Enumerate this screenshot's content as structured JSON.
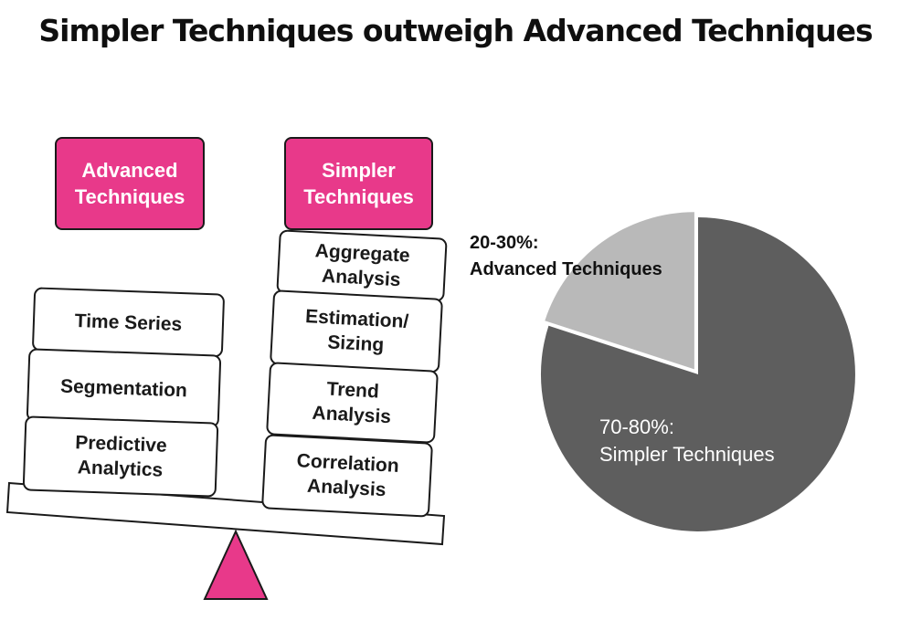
{
  "title": "Simpler Techniques outweigh Advanced Techniques",
  "scale": {
    "left_header": [
      "Advanced",
      "Techniques"
    ],
    "right_header": [
      "Simpler",
      "Techniques"
    ],
    "left_items": [
      "Time Series",
      "Segmentation",
      "Predictive\nAnalytics"
    ],
    "right_items": [
      "Aggregate\nAnalysis",
      "Estimation/\nSizing",
      "Trend\nAnalysis",
      "Correlation\nAnalysis"
    ]
  },
  "pie": {
    "advanced_label": [
      "20-30%:",
      "Advanced Techniques"
    ],
    "simpler_label": [
      "70-80%:",
      "Simpler Techniques"
    ]
  },
  "chart_data": {
    "type": "pie",
    "categories": [
      "Advanced Techniques",
      "Simpler Techniques"
    ],
    "values": [
      20,
      80
    ],
    "labels": [
      "20-30%: Advanced Techniques",
      "70-80%: Simpler Techniques"
    ],
    "colors": [
      "#b9b9b9",
      "#5e5e5e"
    ],
    "exploded": "Advanced Techniques"
  },
  "colors": {
    "accent_pink": "#e8398a",
    "pie_dark": "#5e5e5e",
    "pie_light": "#b9b9b9",
    "outline": "#1a1a1a"
  }
}
